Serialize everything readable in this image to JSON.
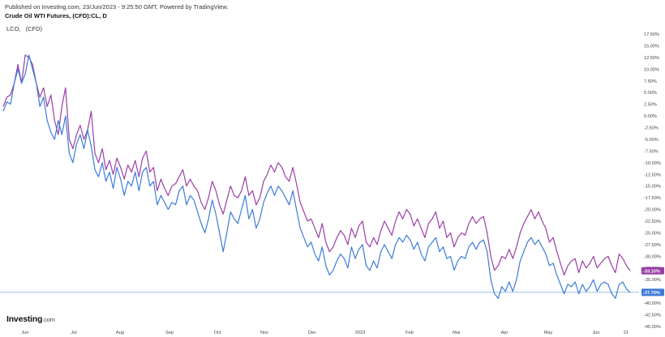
{
  "header": {
    "published": "Published on Investing.com, 23/Jun/2023 - 9:25:50 GMT, Powered by TradingView.",
    "title": "Crude Oil WTI Futures, (CFD):CL, D"
  },
  "legend": {
    "symbol": "LCO,",
    "qualifier": "(CFD)"
  },
  "logo": {
    "brand": "Investing",
    "suffix": ".com"
  },
  "colors": {
    "lco": "#9b3fa6",
    "wti": "#3d7bd8",
    "ref_line": "#8ab6e8",
    "axis_text": "#444444"
  },
  "chart_data": {
    "type": "line",
    "ylim": [
      -45,
      20
    ],
    "y_unit": "%",
    "y_ticks": [
      "17.50%",
      "15.00%",
      "12.50%",
      "10.00%",
      "7.50%",
      "5.00%",
      "2.50%",
      "0.00%",
      "-2.50%",
      "-5.00%",
      "-7.50%",
      "-10.00%",
      "-12.50%",
      "-15.00%",
      "-17.50%",
      "-20.00%",
      "-22.50%",
      "-25.00%",
      "-27.50%",
      "-30.00%",
      "-32.50%",
      "-35.00%",
      "-37.50%",
      "-40.00%",
      "-42.50%",
      "-45.00%"
    ],
    "x_ticks": [
      "Jun",
      "Jul",
      "Aug",
      "Sep",
      "Oct",
      "Nov",
      "Dec",
      "2023",
      "Feb",
      "Mar",
      "Apr",
      "May",
      "Jun",
      "21"
    ],
    "series": [
      {
        "name": "LCO",
        "color": "#9b3fa6",
        "last_label": "-33.10%",
        "last_value": -33.1,
        "values": [
          2,
          4,
          4.5,
          7,
          11,
          7,
          13,
          12.5,
          11,
          7,
          4,
          6,
          2,
          4.5,
          -1,
          -4,
          2,
          6,
          -5,
          -7,
          -4,
          -2,
          -5,
          -3,
          1,
          -8,
          -10,
          -7,
          -11.5,
          -9.5,
          -12.5,
          -9,
          -11,
          -13.5,
          -10.5,
          -12,
          -9.5,
          -13,
          -9,
          -7.5,
          -12,
          -11,
          -16,
          -13.5,
          -15.5,
          -17,
          -15,
          -14.5,
          -13,
          -11.5,
          -15,
          -13.5,
          -15,
          -16,
          -18.5,
          -20,
          -17.5,
          -14,
          -16,
          -19,
          -21,
          -18,
          -15,
          -17,
          -17.5,
          -16,
          -13,
          -17,
          -16,
          -19,
          -17.5,
          -14,
          -12.5,
          -10.5,
          -12,
          -10,
          -11,
          -13,
          -14,
          -11,
          -14.5,
          -18.5,
          -20.5,
          -22.5,
          -22,
          -24,
          -26,
          -23,
          -27,
          -29,
          -28,
          -26,
          -24.5,
          -25.5,
          -27.5,
          -24,
          -26,
          -23.5,
          -22.5,
          -27,
          -28,
          -26,
          -27.5,
          -24.5,
          -22.5,
          -24,
          -25.5,
          -22.5,
          -20.5,
          -22,
          -20,
          -21,
          -23.5,
          -22,
          -24,
          -26,
          -23,
          -22,
          -20.5,
          -24,
          -22.5,
          -26,
          -25,
          -28,
          -26,
          -25,
          -25.5,
          -23,
          -21.5,
          -23,
          -22,
          -21.5,
          -25,
          -30,
          -33,
          -32,
          -30,
          -30.5,
          -28.5,
          -30.5,
          -28,
          -25,
          -23,
          -21.5,
          -20,
          -22,
          -20.5,
          -22.5,
          -24,
          -27,
          -26,
          -29,
          -31.5,
          -34,
          -32,
          -31,
          -30.5,
          -33.5,
          -31,
          -32.5,
          -31.5,
          -30,
          -32.5,
          -31.5,
          -30.5,
          -30,
          -32,
          -33.5,
          -29.5,
          -30.5,
          -32,
          -33.1
        ]
      },
      {
        "name": "WTI (CL)",
        "color": "#3d7bd8",
        "last_label": "-37.70%",
        "last_value": -37.7,
        "values": [
          1,
          3,
          2.5,
          7,
          10,
          7,
          9,
          13,
          10,
          7,
          2,
          4,
          -1,
          -3.5,
          -5,
          -1,
          -4,
          0,
          -8,
          -10,
          -6,
          -4,
          -7,
          -3,
          -6.5,
          -11.5,
          -13,
          -10,
          -14,
          -12,
          -15.5,
          -11,
          -13.5,
          -17,
          -14,
          -15,
          -12,
          -16,
          -12,
          -11,
          -15,
          -14,
          -19,
          -17,
          -18.5,
          -20,
          -18.5,
          -19,
          -16,
          -15,
          -19,
          -17,
          -18,
          -20.5,
          -23,
          -25,
          -22,
          -18,
          -21,
          -25,
          -29,
          -25,
          -20.5,
          -22,
          -23,
          -20,
          -17,
          -22,
          -20,
          -24,
          -22,
          -18.5,
          -16.5,
          -15,
          -17,
          -15,
          -16,
          -17.5,
          -19,
          -16,
          -20,
          -24,
          -26,
          -28,
          -27,
          -29.5,
          -31,
          -28,
          -32,
          -34,
          -33,
          -31,
          -29.5,
          -30.5,
          -32.5,
          -28,
          -30.5,
          -28.5,
          -27.5,
          -32,
          -33,
          -31,
          -32.5,
          -29,
          -27.5,
          -29,
          -30.5,
          -27.5,
          -26,
          -27,
          -25.5,
          -26.5,
          -28.5,
          -27,
          -29.5,
          -31,
          -28,
          -27,
          -26,
          -29,
          -28,
          -30.5,
          -30,
          -33,
          -31,
          -30,
          -30.5,
          -28,
          -27,
          -28.5,
          -27,
          -26.5,
          -29,
          -35,
          -38,
          -39,
          -36.5,
          -37.5,
          -35.5,
          -37.5,
          -35,
          -31,
          -29,
          -27,
          -26,
          -27.5,
          -26.5,
          -28,
          -29.5,
          -32,
          -31.5,
          -34,
          -36,
          -38,
          -36,
          -36.5,
          -35.5,
          -38,
          -36,
          -37.5,
          -36.5,
          -35,
          -37.5,
          -36,
          -35.5,
          -36,
          -38,
          -39,
          -36,
          -35.5,
          -37,
          -37.7
        ]
      }
    ],
    "reference_line": {
      "value": -37.7,
      "label": "-37.70%"
    }
  }
}
